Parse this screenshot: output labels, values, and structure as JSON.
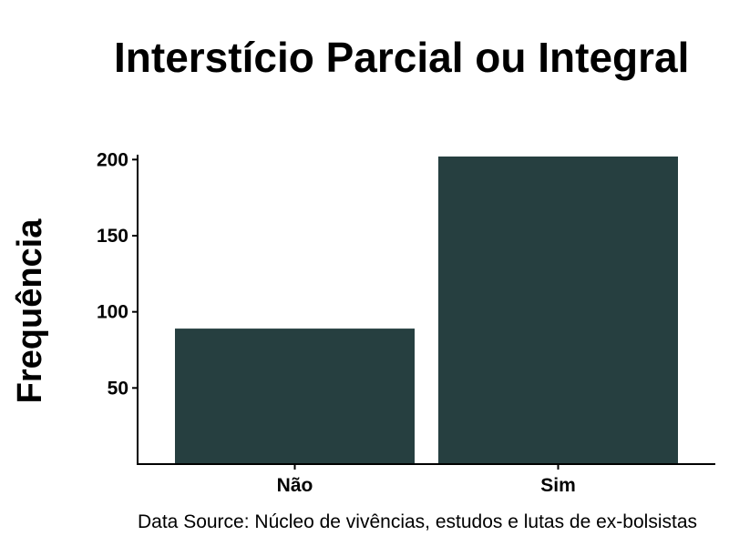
{
  "chart_data": {
    "type": "bar",
    "title": "Interstício Parcial ou Integral",
    "xlabel": "",
    "ylabel": "Frequência",
    "categories": [
      "Não",
      "Sim"
    ],
    "values": [
      89,
      202
    ],
    "ylim": [
      0,
      202
    ],
    "yticks": [
      50,
      100,
      150,
      200
    ],
    "grid": false,
    "bar_color": "#263f40",
    "caption": "Data Source: Núcleo de vivências, estudos e lutas de ex-bolsistas"
  }
}
